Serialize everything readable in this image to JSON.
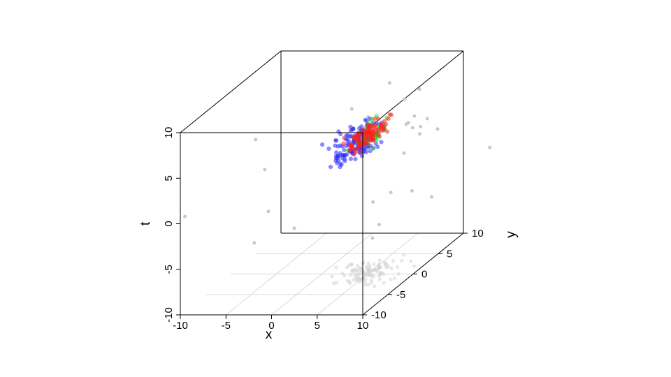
{
  "chart_data": {
    "type": "scatter",
    "projection": "3d-oblique",
    "title": "",
    "axes": {
      "x": {
        "label": "x",
        "range": [
          -10,
          10
        ],
        "ticks": [
          "-10",
          "-5",
          "0",
          "5",
          "10"
        ]
      },
      "y": {
        "label": "y",
        "range": [
          -10,
          10
        ],
        "ticks": [
          "-10",
          "-5",
          "0",
          "5",
          "10"
        ]
      },
      "t": {
        "label": "t",
        "range": [
          -10,
          10
        ],
        "ticks": [
          "-10",
          "-5",
          "0",
          "5",
          "10"
        ]
      }
    },
    "floor_grid": true,
    "floor_shadow": true,
    "colors": {
      "outliers": "#c8c8c8",
      "blue": "#2b2bff",
      "green": "#22dd22",
      "red": "#ff2020",
      "box": "#000000",
      "grid": "#c8c8c8"
    },
    "outliers": [
      {
        "x": 5.5,
        "y": 3.5,
        "t": 9.4
      },
      {
        "x": 8.5,
        "y": 4.0,
        "t": 8.5
      },
      {
        "x": 7.0,
        "y": 3.8,
        "t": 7.5
      },
      {
        "x": 3.0,
        "y": 0.5,
        "t": 7.9
      },
      {
        "x": 7.5,
        "y": 4.8,
        "t": 5.2
      },
      {
        "x": 10.0,
        "y": 1.5,
        "t": 5.5
      },
      {
        "x": 7.0,
        "y": -3.5,
        "t": 8.8
      },
      {
        "x": 8.7,
        "y": 1.0,
        "t": 6.0
      },
      {
        "x": 10.5,
        "y": -1.0,
        "t": 6.5
      },
      {
        "x": 11.0,
        "y": -0.5,
        "t": 5.6
      },
      {
        "x": 10.6,
        "y": -2.0,
        "t": 7.5
      },
      {
        "x": 11.5,
        "y": -4.5,
        "t": 5.3
      },
      {
        "x": 14.0,
        "y": 8.0,
        "t": 0.3
      },
      {
        "x": 11.0,
        "y": 1.0,
        "t": 6.6
      },
      {
        "x": 7.0,
        "y": 1.0,
        "t": -1.5
      },
      {
        "x": 11.3,
        "y": 2.5,
        "t": 4.8
      },
      {
        "x": -4.5,
        "y": -5.0,
        "t": 7.0
      },
      {
        "x": -3.5,
        "y": -5.0,
        "t": 3.7
      },
      {
        "x": -9.5,
        "y": -10.0,
        "t": 0.8
      },
      {
        "x": -2.0,
        "y": -7.0,
        "t": 0.0
      },
      {
        "x": 2.5,
        "y": -10.0,
        "t": -0.5
      },
      {
        "x": 4.5,
        "y": 2.0,
        "t": -3.0
      },
      {
        "x": 5.0,
        "y": 1.0,
        "t": -6.5
      },
      {
        "x": 9.0,
        "y": 5.5,
        "t": -4.0
      },
      {
        "x": 6.0,
        "y": 0.5,
        "t": -4.8
      },
      {
        "x": -3.0,
        "y": -8.0,
        "t": -3.0
      },
      {
        "x": 8.5,
        "y": 2.5,
        "t": -2.0
      }
    ]
  }
}
